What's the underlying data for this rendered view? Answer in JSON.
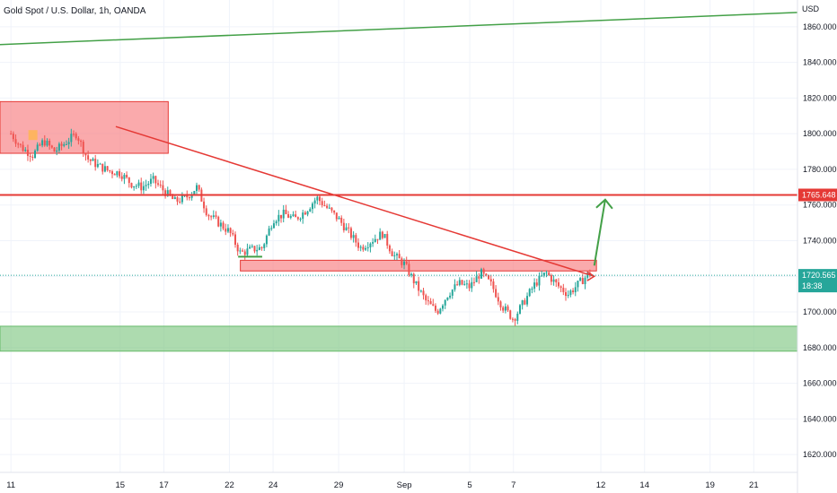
{
  "header": {
    "title": "Gold Spot / U.S. Dollar, 1h, OANDA",
    "currency": "USD"
  },
  "colors": {
    "up": "#26a69a",
    "down": "#ef5350",
    "resistance_line": "#e53935",
    "trend_line": "#43a047",
    "supply_zone": "#f77c80",
    "demand_zone": "#81c784",
    "price_tag": "#26a69a",
    "level_tag": "#e53935"
  },
  "chart_data": {
    "type": "candlestick",
    "instrument": "Gold Spot / U.S. Dollar",
    "interval": "1h",
    "source": "OANDA",
    "ylim": [
      1610,
      1875
    ],
    "y_ticks": [
      1620,
      1640,
      1660,
      1680,
      1700,
      1720,
      1740,
      1760,
      1780,
      1800,
      1820,
      1840,
      1860
    ],
    "y_tick_labels": [
      "1620.000",
      "1640.000",
      "1660.000",
      "1680.000",
      "1700.000",
      "1720.000",
      "1740.000",
      "1760.000",
      "1780.000",
      "1800.000",
      "1820.000",
      "1840.000",
      "1860.000"
    ],
    "x_ticks": [
      "11",
      "15",
      "17",
      "22",
      "24",
      "29",
      "Sep",
      "5",
      "7",
      "12",
      "14",
      "19",
      "21"
    ],
    "x_tick_pos": [
      0,
      5,
      7,
      10,
      12,
      15,
      18,
      21,
      23,
      27,
      29,
      32,
      34
    ],
    "xlim": [
      -0.5,
      36.0
    ],
    "price_path": [
      [
        0,
        1800
      ],
      [
        0.5,
        1792
      ],
      [
        1,
        1788
      ],
      [
        1.5,
        1796
      ],
      [
        2,
        1790
      ],
      [
        2.5,
        1795
      ],
      [
        3,
        1800
      ],
      [
        3.5,
        1786
      ],
      [
        4,
        1782
      ],
      [
        4.5,
        1779
      ],
      [
        5,
        1778
      ],
      [
        5.5,
        1772
      ],
      [
        6,
        1770
      ],
      [
        6.5,
        1774
      ],
      [
        7,
        1768
      ],
      [
        7.5,
        1762
      ],
      [
        8,
        1764
      ],
      [
        8.5,
        1770
      ],
      [
        9,
        1755
      ],
      [
        9.5,
        1750
      ],
      [
        10,
        1745
      ],
      [
        10.5,
        1733
      ],
      [
        11,
        1735
      ],
      [
        11.5,
        1736
      ],
      [
        12,
        1752
      ],
      [
        12.5,
        1755
      ],
      [
        13,
        1752
      ],
      [
        13.5,
        1757
      ],
      [
        14,
        1764
      ],
      [
        14.5,
        1758
      ],
      [
        15,
        1752
      ],
      [
        15.5,
        1744
      ],
      [
        16,
        1736
      ],
      [
        16.5,
        1740
      ],
      [
        17,
        1744
      ],
      [
        17.5,
        1732
      ],
      [
        18,
        1727
      ],
      [
        18.5,
        1716
      ],
      [
        19,
        1706
      ],
      [
        19.5,
        1700
      ],
      [
        20,
        1710
      ],
      [
        20.5,
        1716
      ],
      [
        21,
        1714
      ],
      [
        21.5,
        1722
      ],
      [
        22,
        1715
      ],
      [
        22.5,
        1703
      ],
      [
        23,
        1696
      ],
      [
        23.5,
        1706
      ],
      [
        24,
        1716
      ],
      [
        24.5,
        1722
      ],
      [
        25,
        1715
      ],
      [
        25.5,
        1710
      ],
      [
        26,
        1716
      ],
      [
        26.5,
        1722
      ]
    ],
    "current_price": 1720.565,
    "price_label": "1720.565",
    "countdown": "18:38",
    "marked_level": 1765.648,
    "level_label": "1765.648",
    "annotations": {
      "supply_zone": {
        "x0": -0.5,
        "x1": 7.2,
        "y0": 1789,
        "y1": 1818
      },
      "resistance_zone": {
        "x0": 10.5,
        "x1": 26.8,
        "y0": 1723,
        "y1": 1729
      },
      "demand_zone": {
        "x0": -0.5,
        "x1": 36.0,
        "y0": 1678,
        "y1": 1692
      },
      "horizontal_level": 1765.648,
      "rising_trendline": {
        "x0": -0.5,
        "y0": 1850,
        "x1": 36.0,
        "y1": 1868
      },
      "falling_trendline": {
        "x0": 4.8,
        "y0": 1804,
        "x1": 26.7,
        "y1": 1720
      },
      "breakout_arrow": {
        "x0": 26.7,
        "y0": 1726,
        "x1": 27.2,
        "y1": 1763
      },
      "small_support_mark": {
        "x0": 10.4,
        "x1": 11.5,
        "y": 1731
      }
    }
  }
}
